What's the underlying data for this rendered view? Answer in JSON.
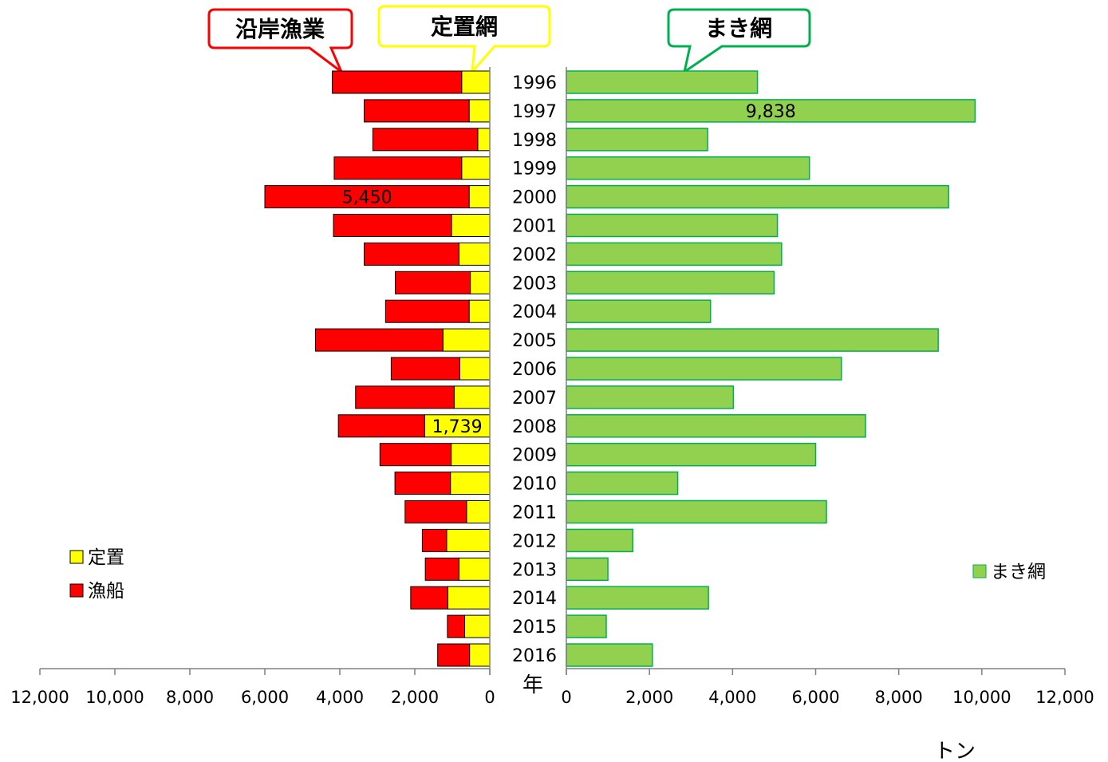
{
  "callouts": {
    "coastal": "沿岸漁業",
    "setnet": "定置網",
    "purse": "まき網"
  },
  "colors": {
    "fixed": "#ffff00",
    "boat": "#ff0000",
    "purse": "#92d050",
    "purse_border": "#00b050",
    "coastal_border": "#ff0000",
    "setnet_border": "#ffff00",
    "purse_callout_border": "#00b050"
  },
  "legend_left": [
    {
      "label": "定置",
      "color": "#ffff00"
    },
    {
      "label": "漁船",
      "color": "#ff0000"
    }
  ],
  "legend_right": [
    {
      "label": "まき網",
      "color": "#92d050"
    }
  ],
  "year_axis_label": "年",
  "unit_label": "トン",
  "chart_data": [
    {
      "type": "bar",
      "orientation": "horizontal-stacked",
      "direction": "leftward",
      "categories": [
        "1996",
        "1997",
        "1998",
        "1999",
        "2000",
        "2001",
        "2002",
        "2003",
        "2004",
        "2005",
        "2006",
        "2007",
        "2008",
        "2009",
        "2010",
        "2011",
        "2012",
        "2013",
        "2014",
        "2015",
        "2016"
      ],
      "series": [
        {
          "name": "定置",
          "values": [
            750,
            550,
            320,
            750,
            550,
            1020,
            820,
            520,
            550,
            1250,
            800,
            950,
            1739,
            1030,
            1050,
            620,
            1150,
            820,
            1120,
            670,
            540
          ]
        },
        {
          "name": "漁船",
          "values": [
            3450,
            2800,
            2800,
            3400,
            5450,
            3150,
            2530,
            2000,
            2230,
            3400,
            1830,
            2630,
            2300,
            1900,
            1480,
            1640,
            650,
            900,
            990,
            460,
            850
          ]
        }
      ],
      "xlim": [
        0,
        12000
      ],
      "ticks": [
        "12,000",
        "10,000",
        "8,000",
        "6,000",
        "4,000",
        "2,000",
        "0"
      ],
      "data_labels": [
        {
          "category": "2000",
          "series": "漁船",
          "text": "5,450"
        },
        {
          "category": "2008",
          "series": "定置",
          "text": "1,739"
        }
      ],
      "legend": "left"
    },
    {
      "type": "bar",
      "orientation": "horizontal",
      "direction": "rightward",
      "categories": [
        "1996",
        "1997",
        "1998",
        "1999",
        "2000",
        "2001",
        "2002",
        "2003",
        "2004",
        "2005",
        "2006",
        "2007",
        "2008",
        "2009",
        "2010",
        "2011",
        "2012",
        "2013",
        "2014",
        "2015",
        "2016"
      ],
      "series": [
        {
          "name": "まき網",
          "values": [
            4600,
            9838,
            3400,
            5850,
            9200,
            5080,
            5180,
            5000,
            3470,
            8950,
            6620,
            4020,
            7200,
            6000,
            2680,
            6260,
            1600,
            1000,
            3420,
            960,
            2070
          ]
        }
      ],
      "xlim": [
        0,
        12000
      ],
      "ticks": [
        "0",
        "2,000",
        "4,000",
        "6,000",
        "8,000",
        "10,000",
        "12,000"
      ],
      "data_labels": [
        {
          "category": "1997",
          "series": "まき網",
          "text": "9,838"
        }
      ],
      "legend": "right"
    }
  ]
}
